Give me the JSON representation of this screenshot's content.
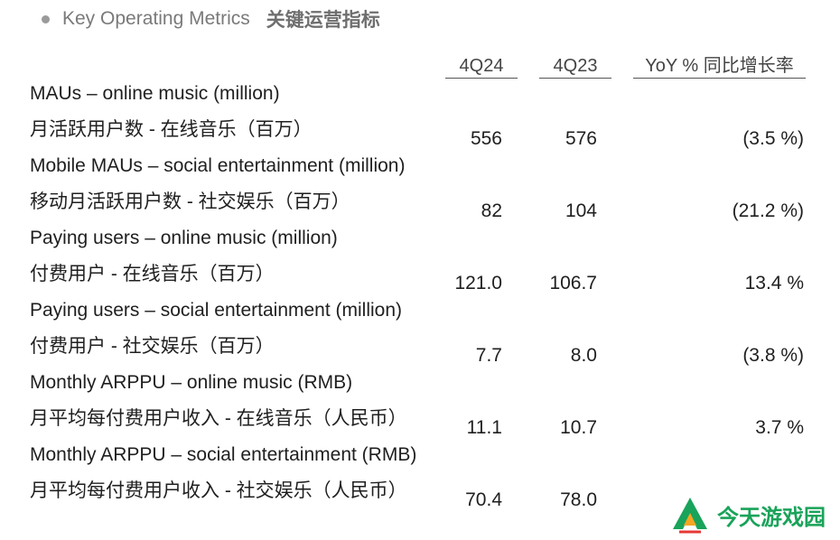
{
  "heading": {
    "title_en": "Key Operating Metrics",
    "title_zh": "关键运营指标"
  },
  "columns": [
    "4Q24",
    "4Q23",
    "YoY % 同比增长率"
  ],
  "rows": [
    {
      "en": "MAUs – online music (million)",
      "zh": "月活跃用户数 - 在线音乐（百万）",
      "q424": "556",
      "q423": "576",
      "yoy": "(3.5 %)"
    },
    {
      "en": "Mobile MAUs – social entertainment (million)",
      "zh": "移动月活跃用户数 - 社交娱乐（百万）",
      "q424": "82",
      "q423": "104",
      "yoy": "(21.2 %)"
    },
    {
      "en": "Paying users – online music (million)",
      "zh": "付费用户 - 在线音乐（百万）",
      "q424": "121.0",
      "q423": "106.7",
      "yoy": "13.4 %"
    },
    {
      "en": "Paying users – social entertainment (million)",
      "zh": "付费用户 - 社交娱乐（百万）",
      "q424": "7.7",
      "q423": "8.0",
      "yoy": "(3.8 %)"
    },
    {
      "en": "Monthly ARPPU – online music (RMB)",
      "zh": "月平均每付费用户收入 - 在线音乐（人民币）",
      "q424": "11.1",
      "q423": "10.7",
      "yoy": "3.7 %"
    },
    {
      "en": "Monthly ARPPU – social entertainment (RMB)",
      "zh": "月平均每付费用户收入 - 社交娱乐（人民币）",
      "q424": "70.4",
      "q423": "78.0",
      "yoy": ""
    }
  ],
  "watermark": {
    "text": "今天游戏园",
    "color": "#1aa35a"
  }
}
